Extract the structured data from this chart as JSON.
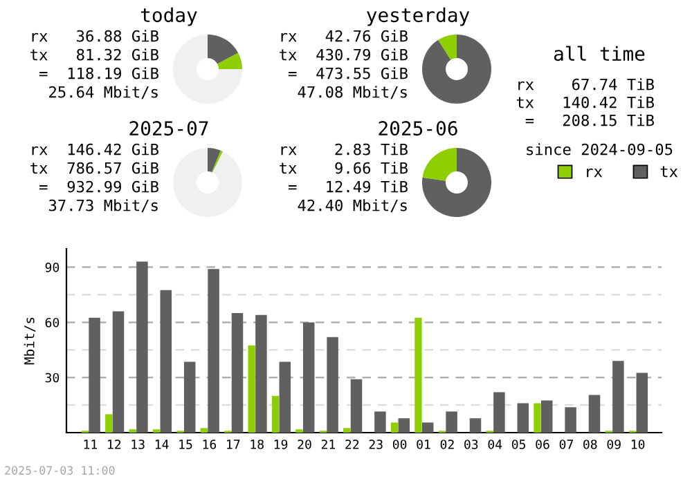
{
  "chart_data": [
    {
      "type": "donut",
      "title": "today",
      "categories": [
        null,
        null,
        null
      ],
      "values": [
        17.2,
        7.8,
        75.0
      ],
      "colors": [
        "#606060",
        "#8fce00",
        "#f0f0f0"
      ],
      "annotations": [
        "rx   36.88 GiB",
        "tx   81.32 GiB",
        "=  118.19 GiB",
        "25.64 Mbit/s"
      ]
    },
    {
      "type": "donut",
      "title": "yesterday",
      "categories": [
        null,
        null
      ],
      "values": [
        91.0,
        9.0
      ],
      "colors": [
        "#606060",
        "#8fce00"
      ],
      "annotations": [
        "rx   42.76 GiB",
        "tx  430.79 GiB",
        "=  473.55 GiB",
        "47.08 Mbit/s"
      ]
    },
    {
      "type": "donut",
      "title": "2025-07",
      "categories": [
        null,
        null,
        null
      ],
      "values": [
        6.2,
        1.1,
        92.7
      ],
      "colors": [
        "#606060",
        "#8fce00",
        "#f0f0f0"
      ],
      "annotations": [
        "rx  146.42 GiB",
        "tx  786.57 GiB",
        "=  932.99 GiB",
        "37.73 Mbit/s"
      ]
    },
    {
      "type": "donut",
      "title": "2025-06",
      "categories": [
        null,
        null
      ],
      "values": [
        77.3,
        22.7
      ],
      "colors": [
        "#606060",
        "#8fce00"
      ],
      "annotations": [
        "rx    2.83 TiB",
        "tx    9.66 TiB",
        "=   12.49 TiB",
        "42.40 Mbit/s"
      ]
    },
    {
      "type": "other",
      "title": "all time",
      "annotations": [
        "rx    67.74 TiB",
        "tx   140.42 TiB",
        "=   208.15 TiB",
        "since 2024-09-05"
      ]
    },
    {
      "type": "bar",
      "ylabel": "Mbit/s",
      "legend": "top right",
      "grid": "y",
      "categories": [
        "11",
        "12",
        "13",
        "14",
        "15",
        "16",
        "17",
        "18",
        "19",
        "20",
        "21",
        "22",
        "23",
        "00",
        "01",
        "02",
        "03",
        "04",
        "05",
        "06",
        "07",
        "08",
        "09",
        "10"
      ],
      "ylim": [
        0,
        100
      ],
      "yticks": [
        {
          "value": 15,
          "label": null
        },
        30,
        {
          "value": 45,
          "label": null
        },
        60,
        {
          "value": 75,
          "label": null
        },
        90
      ],
      "series": [
        {
          "name": "rx",
          "color": "#8fce00",
          "values": [
            1,
            10,
            1.8,
            1.8,
            1,
            2.5,
            1,
            47.5,
            20,
            1.8,
            1,
            2.5,
            0,
            5.5,
            62.5,
            1,
            0,
            1,
            0,
            16,
            0,
            0,
            1,
            1
          ]
        },
        {
          "name": "tx",
          "color": "#606060",
          "values": [
            62.5,
            66,
            93,
            77.5,
            38.5,
            89,
            65,
            64,
            38.5,
            60,
            52,
            29,
            11.5,
            7.8,
            5.5,
            11.5,
            7.8,
            22,
            16,
            17.5,
            13.8,
            20.5,
            39,
            32.5
          ]
        }
      ],
      "annotations": [
        "2025-07-03 11:00"
      ]
    }
  ]
}
